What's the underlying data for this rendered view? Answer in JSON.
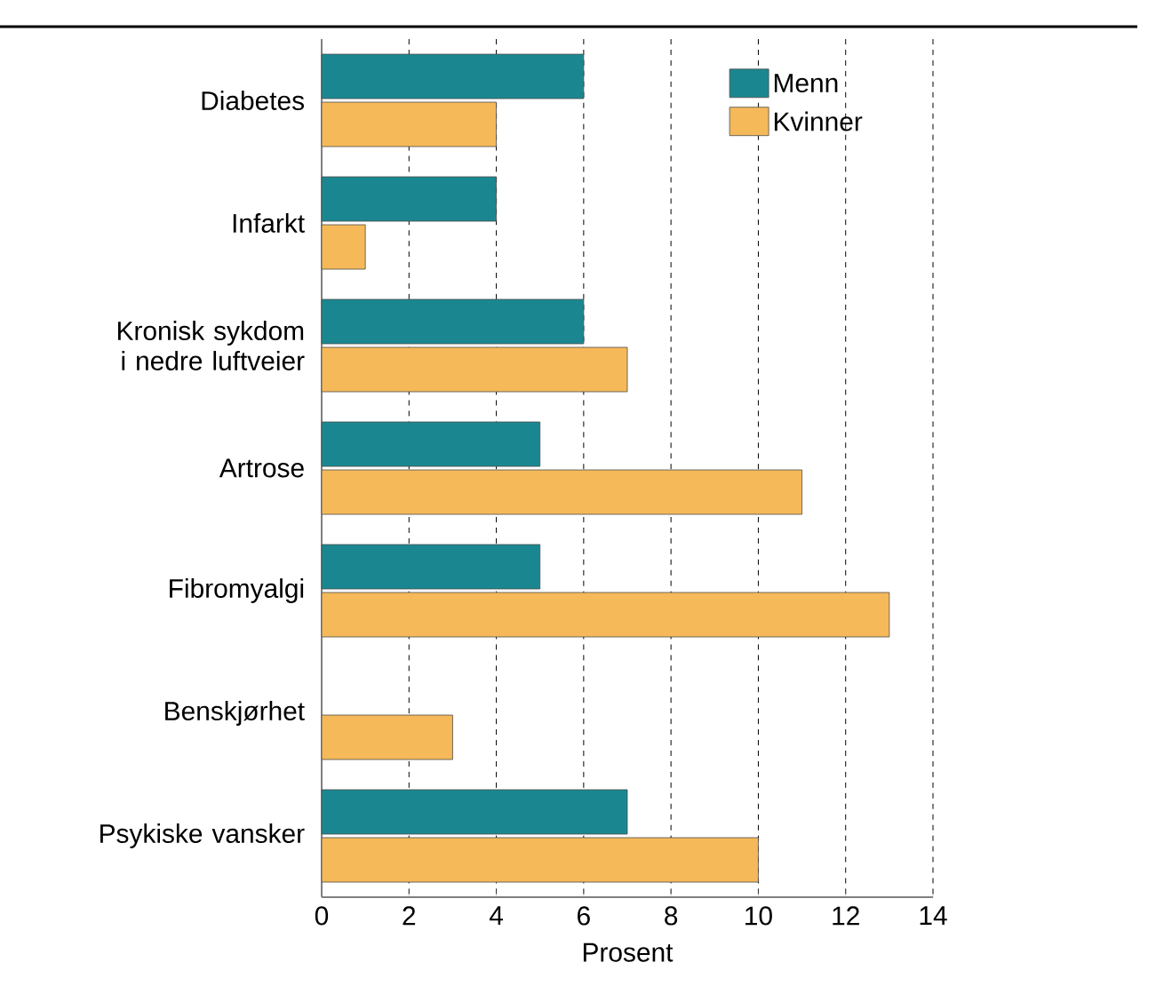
{
  "chart_data": {
    "type": "bar",
    "orientation": "horizontal",
    "xlabel": "Prosent",
    "categories": [
      "Diabetes",
      "Infarkt",
      "Kronisk sykdom i nedre luftveier",
      "Artrose",
      "Fibromyalgi",
      "Benskjørhet",
      "Psykiske vansker"
    ],
    "series": [
      {
        "name": "Menn",
        "color": "#1a8790",
        "values": [
          6,
          4,
          6,
          5,
          5,
          null,
          7
        ]
      },
      {
        "name": "Kvinner",
        "color": "#f5b95a",
        "values": [
          4,
          1,
          7,
          11,
          13,
          3,
          10
        ]
      }
    ],
    "xlim": [
      0,
      14
    ],
    "xticks": [
      0,
      2,
      4,
      6,
      8,
      10,
      12,
      14
    ],
    "grid": "x",
    "legend": "top right"
  }
}
